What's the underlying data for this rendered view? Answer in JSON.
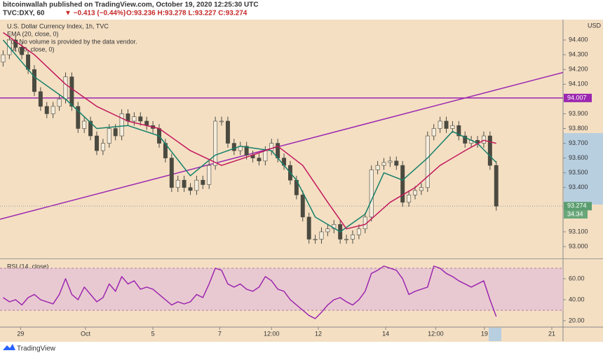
{
  "header": {
    "author_line": "bitcoinwallah published on TradingView.com, October 19, 2020 12:25:30 UTC",
    "symbol": "TVC:DXY, 60",
    "change": "▼ −0.413 (−0.44%)",
    "ohlc": "O:93.236 H:93.278 L:93.227 C:93.274",
    "logo": "TradingView"
  },
  "chart_data": [
    {
      "type": "candlestick",
      "title": "U.S. Dollar Currency Index, 1h, TVC",
      "legend_lines": [
        "EMA (20, close, 0)",
        "Vol: No volume is provided by the data vendor.",
        "MA (50, close, 0)"
      ],
      "axis_unit": "USD",
      "up_color": "#f5ecdc",
      "down_color": "#4b4a40",
      "wick_color": "#4b4a40",
      "xlim": [
        -0.5,
        89.7
      ],
      "xticks": [
        {
          "value": 2.8,
          "label": "29"
        },
        {
          "value": 13.2,
          "label": "Oct"
        },
        {
          "value": 24,
          "label": "5"
        },
        {
          "value": 34.7,
          "label": "7"
        },
        {
          "value": 43,
          "label": "12:00"
        },
        {
          "value": 50.5,
          "label": "12"
        },
        {
          "value": 61.3,
          "label": "14"
        },
        {
          "value": 69.3,
          "label": "12:00"
        },
        {
          "value": 77.1,
          "label": "19"
        },
        {
          "value": 87.9,
          "label": "21"
        }
      ],
      "ylim": [
        92.929,
        94.538
      ],
      "yticks": [
        {
          "value": 94.4,
          "label": "94.400"
        },
        {
          "value": 94.3,
          "label": "94.300"
        },
        {
          "value": 94.2,
          "label": "94.200"
        },
        {
          "value": 94.1,
          "label": "94.100"
        },
        {
          "value": 93.9,
          "label": "93.900"
        },
        {
          "value": 93.8,
          "label": "93.800"
        },
        {
          "value": 93.7,
          "label": "93.700"
        },
        {
          "value": 93.6,
          "label": "93.600"
        },
        {
          "value": 93.5,
          "label": "93.500"
        },
        {
          "value": 93.4,
          "label": "93.400"
        },
        {
          "value": 93.1,
          "label": "93.100"
        },
        {
          "value": 93,
          "label": "93.000"
        }
      ],
      "open": [
        94.25,
        94.3,
        94.4,
        94.35,
        94.3,
        94.2,
        94.05,
        93.95,
        93.9,
        93.95,
        94.0,
        94.15,
        93.95,
        93.8,
        93.85,
        93.75,
        93.65,
        93.7,
        93.8,
        93.75,
        93.9,
        93.85,
        93.88,
        93.85,
        93.82,
        93.8,
        93.7,
        93.6,
        93.4,
        93.45,
        93.4,
        93.38,
        93.45,
        93.42,
        93.55,
        93.85,
        93.85,
        93.7,
        93.65,
        93.68,
        93.62,
        93.6,
        93.58,
        93.65,
        93.7,
        93.6,
        93.55,
        93.45,
        93.35,
        93.2,
        93.05,
        93.05,
        93.1,
        93.12,
        93.15,
        93.05,
        93.05,
        93.08,
        93.12,
        93.2,
        93.52,
        93.55,
        93.57,
        93.58,
        93.55,
        93.3,
        93.35,
        93.38,
        93.4,
        93.75,
        93.8,
        93.85,
        93.8,
        93.82,
        93.75,
        93.7,
        93.72,
        93.7,
        93.75,
        93.55
      ],
      "high": [
        94.33,
        94.43,
        94.43,
        94.38,
        94.33,
        94.23,
        94.08,
        93.98,
        93.98,
        94.03,
        94.18,
        94.18,
        93.98,
        93.88,
        93.88,
        93.78,
        93.73,
        93.83,
        93.83,
        93.93,
        93.93,
        93.91,
        93.91,
        93.88,
        93.85,
        93.83,
        93.73,
        93.63,
        93.48,
        93.48,
        93.43,
        93.48,
        93.48,
        93.58,
        93.88,
        93.88,
        93.88,
        93.73,
        93.71,
        93.71,
        93.65,
        93.63,
        93.68,
        93.73,
        93.73,
        93.63,
        93.58,
        93.48,
        93.38,
        93.23,
        93.08,
        93.13,
        93.15,
        93.18,
        93.18,
        93.08,
        93.11,
        93.15,
        93.23,
        93.55,
        93.58,
        93.6,
        93.61,
        93.61,
        93.58,
        93.38,
        93.41,
        93.43,
        93.78,
        93.83,
        93.88,
        93.88,
        93.85,
        93.85,
        93.78,
        93.75,
        93.75,
        93.78,
        93.78,
        93.58
      ],
      "low": [
        94.22,
        94.27,
        94.32,
        94.27,
        94.17,
        94.02,
        93.92,
        93.87,
        93.87,
        93.92,
        93.97,
        93.92,
        93.77,
        93.77,
        93.72,
        93.62,
        93.62,
        93.67,
        93.72,
        93.72,
        93.82,
        93.82,
        93.82,
        93.79,
        93.77,
        93.67,
        93.57,
        93.37,
        93.37,
        93.37,
        93.35,
        93.35,
        93.39,
        93.39,
        93.52,
        93.82,
        93.67,
        93.62,
        93.62,
        93.59,
        93.57,
        93.55,
        93.55,
        93.62,
        93.57,
        93.52,
        93.42,
        93.32,
        93.17,
        93.02,
        93.02,
        93.02,
        93.07,
        93.09,
        93.02,
        93.02,
        93.02,
        93.05,
        93.09,
        93.17,
        93.49,
        93.52,
        93.54,
        93.52,
        93.27,
        93.27,
        93.32,
        93.35,
        93.37,
        93.72,
        93.77,
        93.77,
        93.77,
        93.72,
        93.67,
        93.67,
        93.67,
        93.67,
        93.52,
        93.244
      ],
      "close": [
        94.3,
        94.4,
        94.35,
        94.3,
        94.2,
        94.05,
        93.95,
        93.9,
        93.95,
        94.0,
        94.15,
        93.95,
        93.8,
        93.85,
        93.75,
        93.65,
        93.7,
        93.8,
        93.75,
        93.9,
        93.85,
        93.88,
        93.85,
        93.82,
        93.8,
        93.7,
        93.6,
        93.4,
        93.45,
        93.4,
        93.38,
        93.45,
        93.42,
        93.55,
        93.85,
        93.85,
        93.7,
        93.65,
        93.68,
        93.62,
        93.6,
        93.58,
        93.65,
        93.7,
        93.6,
        93.55,
        93.45,
        93.35,
        93.2,
        93.05,
        93.05,
        93.1,
        93.12,
        93.15,
        93.05,
        93.05,
        93.08,
        93.12,
        93.2,
        93.52,
        93.55,
        93.57,
        93.58,
        93.55,
        93.3,
        93.35,
        93.38,
        93.4,
        93.75,
        93.8,
        93.85,
        93.8,
        93.82,
        93.75,
        93.7,
        93.72,
        93.7,
        93.75,
        93.55,
        93.274
      ],
      "series": [
        {
          "name": "EMA (20, close, 0)",
          "color": "#14806a",
          "x": [
            0,
            5,
            10,
            15,
            20,
            25,
            30,
            34,
            38,
            43,
            47,
            50,
            54,
            58,
            61,
            64,
            68,
            72,
            76,
            79
          ],
          "values": [
            94.4,
            94.15,
            94.0,
            93.8,
            93.82,
            93.75,
            93.48,
            93.62,
            93.68,
            93.65,
            93.45,
            93.2,
            93.1,
            93.22,
            93.5,
            93.45,
            93.6,
            93.78,
            93.7,
            93.57
          ]
        },
        {
          "name": "MA (50, close, 0)",
          "color": "#c2185b",
          "x": [
            0,
            5,
            10,
            15,
            20,
            25,
            30,
            35,
            40,
            44,
            48,
            52,
            55,
            58,
            62,
            66,
            70,
            74,
            77,
            79
          ],
          "values": [
            94.45,
            94.3,
            94.1,
            93.95,
            93.85,
            93.8,
            93.65,
            93.55,
            93.62,
            93.68,
            93.55,
            93.3,
            93.12,
            93.15,
            93.3,
            93.4,
            93.55,
            93.65,
            93.72,
            93.7
          ]
        }
      ],
      "lines": [
        {
          "color": "#9c27b0",
          "x": [
            -0.5,
            89.7
          ],
          "values": [
            93.185,
            94.18
          ]
        }
      ],
      "price_labels": [
        {
          "value": 94.007,
          "color": "#9c27b0",
          "horizontal": true
        },
        {
          "value": 93.274,
          "color": "#5a9e6f",
          "dotted": true
        }
      ],
      "extra_axis_label": "34.34"
    },
    {
      "type": "line",
      "title": "RSI (14, close)",
      "xlim": [
        -0.5,
        89.7
      ],
      "ylim": [
        15.3,
        77.3
      ],
      "yticks": [
        {
          "value": 60,
          "label": "60.00"
        },
        {
          "value": 40,
          "label": "40.00"
        },
        {
          "value": 20,
          "label": "20.00"
        }
      ],
      "band": [
        30,
        70
      ],
      "band_color": "#e6c3d4",
      "series": [
        {
          "name": "RSI",
          "color": "#9c27b0",
          "values": [
            42,
            38,
            40,
            35,
            42,
            45,
            40,
            38,
            36,
            45,
            60,
            45,
            40,
            52,
            45,
            38,
            42,
            55,
            48,
            62,
            55,
            58,
            50,
            52,
            50,
            45,
            40,
            35,
            38,
            36,
            38,
            45,
            42,
            55,
            70,
            68,
            55,
            52,
            55,
            50,
            48,
            52,
            62,
            58,
            50,
            48,
            40,
            35,
            30,
            25,
            22,
            28,
            35,
            40,
            42,
            38,
            35,
            40,
            48,
            65,
            68,
            72,
            70,
            68,
            60,
            45,
            48,
            50,
            52,
            72,
            70,
            65,
            62,
            58,
            55,
            52,
            55,
            58,
            40,
            24
          ]
        }
      ]
    }
  ]
}
